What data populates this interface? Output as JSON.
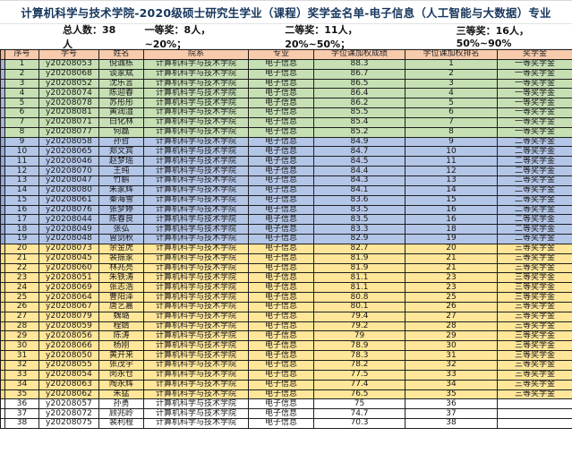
{
  "title": "计算机科学与技术学院-2020级硕士研究生学业（课程）奖学金名单-电子信息（人工智能与大数据）专业",
  "summary": {
    "total": "总人数：38人",
    "first": "一等奖：8人，~20%；",
    "second": "二等奖：11人，20%~50%；",
    "third": "三等奖：16人，50%~90%"
  },
  "colors": {
    "header_band": "#f8cbad",
    "first_band": "#c6e0b4",
    "second_band": "#b4c6e7",
    "third_band": "#ffe699",
    "major_text": "#2e5cb8",
    "title_text": "#16365c"
  },
  "table": {
    "columns": [
      "序号",
      "学号",
      "姓名",
      "院系",
      "专业",
      "学位课加权成绩",
      "学位课加权排名",
      "奖学金"
    ],
    "rows": [
      {
        "no": "1",
        "id": "y20208053",
        "name": "倪诚栋",
        "dept": "计算机科学与技术学院",
        "major": "电子信息",
        "score": "88.3",
        "rank": "1",
        "award": "一等奖学金",
        "tier": "first"
      },
      {
        "no": "2",
        "id": "y20208068",
        "name": "谈家斌",
        "dept": "计算机科学与技术学院",
        "major": "电子信息",
        "score": "86.7",
        "rank": "2",
        "award": "一等奖学金",
        "tier": "first"
      },
      {
        "no": "3",
        "id": "y20208052",
        "name": "沈乐言",
        "dept": "计算机科学与技术学院",
        "major": "电子信息",
        "score": "86.5",
        "rank": "3",
        "award": "一等奖学金",
        "tier": "first"
      },
      {
        "no": "4",
        "id": "y20208074",
        "name": "陈迎春",
        "dept": "计算机科学与技术学院",
        "major": "电子信息",
        "score": "86.4",
        "rank": "4",
        "award": "一等奖学金",
        "tier": "first"
      },
      {
        "no": "5",
        "id": "y20208078",
        "name": "苏彤彤",
        "dept": "计算机科学与技术学院",
        "major": "电子信息",
        "score": "86.2",
        "rank": "5",
        "award": "一等奖学金",
        "tier": "first"
      },
      {
        "no": "6",
        "id": "y20208081",
        "name": "黄润湿",
        "dept": "计算机科学与技术学院",
        "major": "电子信息",
        "score": "85.5",
        "rank": "6",
        "award": "一等奖学金",
        "tier": "first"
      },
      {
        "no": "7",
        "id": "y20208071",
        "name": "白化林",
        "dept": "计算机科学与技术学院",
        "major": "电子信息",
        "score": "85.4",
        "rank": "7",
        "award": "一等奖学金",
        "tier": "first"
      },
      {
        "no": "8",
        "id": "y20208077",
        "name": "何磊",
        "dept": "计算机科学与技术学院",
        "major": "电子信息",
        "score": "85.2",
        "rank": "8",
        "award": "一等奖学金",
        "tier": "first"
      },
      {
        "no": "9",
        "id": "y20208058",
        "name": "孙哲",
        "dept": "计算机科学与技术学院",
        "major": "电子信息",
        "score": "84.9",
        "rank": "9",
        "award": "二等奖学金",
        "tier": "second"
      },
      {
        "no": "10",
        "id": "y20208065",
        "name": "郑文宾",
        "dept": "计算机科学与技术学院",
        "major": "电子信息",
        "score": "84.7",
        "rank": "10",
        "award": "二等奖学金",
        "tier": "second"
      },
      {
        "no": "11",
        "id": "y20208046",
        "name": "赵梦瑶",
        "dept": "计算机科学与技术学院",
        "major": "电子信息",
        "score": "84.5",
        "rank": "11",
        "award": "二等奖学金",
        "tier": "second"
      },
      {
        "no": "12",
        "id": "y20208070",
        "name": "王纯",
        "dept": "计算机科学与技术学院",
        "major": "电子信息",
        "score": "84.4",
        "rank": "12",
        "award": "二等奖学金",
        "tier": "second"
      },
      {
        "no": "13",
        "id": "y20208047",
        "name": "竹鹏",
        "dept": "计算机科学与技术学院",
        "major": "电子信息",
        "score": "84.3",
        "rank": "13",
        "award": "二等奖学金",
        "tier": "second"
      },
      {
        "no": "14",
        "id": "y20208080",
        "name": "朱家辉",
        "dept": "计算机科学与技术学院",
        "major": "电子信息",
        "score": "84.1",
        "rank": "14",
        "award": "二等奖学金",
        "tier": "second"
      },
      {
        "no": "15",
        "id": "y20208061",
        "name": "秦海雪",
        "dept": "计算机科学与技术学院",
        "major": "电子信息",
        "score": "83.6",
        "rank": "15",
        "award": "二等奖学金",
        "tier": "second"
      },
      {
        "no": "16",
        "id": "y20208076",
        "name": "张梦婷",
        "dept": "计算机科学与技术学院",
        "major": "电子信息",
        "score": "83.5",
        "rank": "16",
        "award": "二等奖学金",
        "tier": "second"
      },
      {
        "no": "17",
        "id": "y20208044",
        "name": "陈春良",
        "dept": "计算机科学与技术学院",
        "major": "电子信息",
        "score": "83.5",
        "rank": "16",
        "award": "二等奖学金",
        "tier": "second"
      },
      {
        "no": "18",
        "id": "y20208049",
        "name": "张弘",
        "dept": "计算机科学与技术学院",
        "major": "电子信息",
        "score": "83.3",
        "rank": "18",
        "award": "二等奖学金",
        "tier": "second"
      },
      {
        "no": "19",
        "id": "y20208048",
        "name": "曾剑秋",
        "dept": "计算机科学与技术学院",
        "major": "电子信息",
        "score": "82.9",
        "rank": "19",
        "award": "二等奖学金",
        "tier": "second"
      },
      {
        "no": "20",
        "id": "y20208073",
        "name": "余金虎",
        "dept": "计算机科学与技术学院",
        "major": "电子信息",
        "score": "82.7",
        "rank": "20",
        "award": "三等奖学金",
        "tier": "third"
      },
      {
        "no": "21",
        "id": "y20208045",
        "name": "裴振家",
        "dept": "计算机科学与技术学院",
        "major": "电子信息",
        "score": "81.9",
        "rank": "21",
        "award": "三等奖学金",
        "tier": "third"
      },
      {
        "no": "22",
        "id": "y20208060",
        "name": "林兆亮",
        "dept": "计算机科学与技术学院",
        "major": "电子信息",
        "score": "81.9",
        "rank": "21",
        "award": "三等奖学金",
        "tier": "third"
      },
      {
        "no": "23",
        "id": "y20208051",
        "name": "朱铁涛",
        "dept": "计算机科学与技术学院",
        "major": "电子信息",
        "score": "81.1",
        "rank": "23",
        "award": "三等奖学金",
        "tier": "third"
      },
      {
        "no": "24",
        "id": "y20208069",
        "name": "张志浩",
        "dept": "计算机科学与技术学院",
        "major": "电子信息",
        "score": "81.1",
        "rank": "23",
        "award": "三等奖学金",
        "tier": "third"
      },
      {
        "no": "25",
        "id": "y20208064",
        "name": "曹阳泽",
        "dept": "计算机科学与技术学院",
        "major": "电子信息",
        "score": "80.8",
        "rank": "25",
        "award": "三等奖学金",
        "tier": "third"
      },
      {
        "no": "26",
        "id": "y20208067",
        "name": "唐艺嘉",
        "dept": "计算机科学与技术学院",
        "major": "电子信息",
        "score": "80.1",
        "rank": "26",
        "award": "三等奖学金",
        "tier": "third"
      },
      {
        "no": "27",
        "id": "y20208079",
        "name": "魏璐",
        "dept": "计算机科学与技术学院",
        "major": "电子信息",
        "score": "79.4",
        "rank": "27",
        "award": "三等奖学金",
        "tier": "third"
      },
      {
        "no": "28",
        "id": "y20208059",
        "name": "程婧",
        "dept": "计算机科学与技术学院",
        "major": "电子信息",
        "score": "79.2",
        "rank": "28",
        "award": "三等奖学金",
        "tier": "third"
      },
      {
        "no": "29",
        "id": "y20208056",
        "name": "陈涛",
        "dept": "计算机科学与技术学院",
        "major": "电子信息",
        "score": "79",
        "rank": "29",
        "award": "三等奖学金",
        "tier": "third"
      },
      {
        "no": "30",
        "id": "y20208066",
        "name": "杨刚",
        "dept": "计算机科学与技术学院",
        "major": "电子信息",
        "score": "78.9",
        "rank": "30",
        "award": "三等奖学金",
        "tier": "third"
      },
      {
        "no": "31",
        "id": "y20208050",
        "name": "黄开来",
        "dept": "计算机科学与技术学院",
        "major": "电子信息",
        "score": "78.3",
        "rank": "31",
        "award": "三等奖学金",
        "tier": "third"
      },
      {
        "no": "32",
        "id": "y20208055",
        "name": "张茂宇",
        "dept": "计算机科学与技术学院",
        "major": "电子信息",
        "score": "78.2",
        "rank": "32",
        "award": "三等奖学金",
        "tier": "third"
      },
      {
        "no": "33",
        "id": "y20208054",
        "name": "闵永仓",
        "dept": "计算机科学与技术学院",
        "major": "电子信息",
        "score": "77.5",
        "rank": "33",
        "award": "三等奖学金",
        "tier": "third"
      },
      {
        "no": "34",
        "id": "y20208063",
        "name": "陶永辉",
        "dept": "计算机科学与技术学院",
        "major": "电子信息",
        "score": "77.4",
        "rank": "34",
        "award": "三等奖学金",
        "tier": "third"
      },
      {
        "no": "35",
        "id": "y20208062",
        "name": "朱猛",
        "dept": "计算机科学与技术学院",
        "major": "电子信息",
        "score": "76.5",
        "rank": "35",
        "award": "三等奖学金",
        "tier": "third"
      },
      {
        "no": "36",
        "id": "y20208057",
        "name": "孙勇",
        "dept": "计算机科学与技术学院",
        "major": "电子信息",
        "score": "75",
        "rank": "36",
        "award": "",
        "tier": "none"
      },
      {
        "no": "37",
        "id": "y20208072",
        "name": "顾兆岭",
        "dept": "计算机科学与技术学院",
        "major": "电子信息",
        "score": "74.7",
        "rank": "37",
        "award": "",
        "tier": "none"
      },
      {
        "no": "38",
        "id": "y20208075",
        "name": "裴利程",
        "dept": "计算机科学与技术学院",
        "major": "电子信息",
        "score": "70.3",
        "rank": "38",
        "award": "",
        "tier": "none"
      }
    ]
  }
}
